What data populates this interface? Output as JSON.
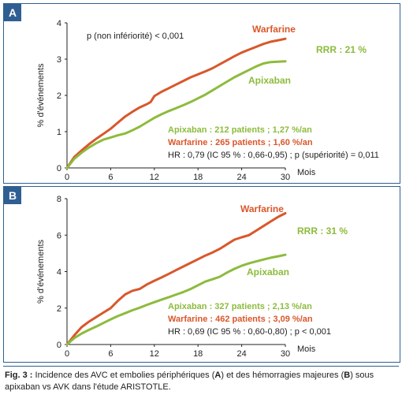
{
  "chart_data": [
    {
      "type": "line",
      "panel_label": "A",
      "ylabel": "% d'événements",
      "xlabel": "Mois",
      "xlim": [
        0,
        30
      ],
      "ylim": [
        0,
        4
      ],
      "xticks": [
        "0",
        "6",
        "12",
        "18",
        "24",
        "30"
      ],
      "yticks": [
        "0",
        "1",
        "2",
        "3",
        "4"
      ],
      "annotation": "p (non infériorité) < 0,001",
      "rrr": "RRR : 21 %",
      "series": [
        {
          "name": "Warfarine",
          "color": "#d9572b",
          "x": [
            0,
            1,
            2,
            3,
            4,
            5,
            6,
            7,
            8,
            9,
            10,
            11,
            11.5,
            12,
            13,
            14,
            15,
            16,
            17,
            18,
            19,
            20,
            21,
            22,
            23,
            24,
            25,
            26,
            27,
            28,
            29,
            30
          ],
          "values": [
            0,
            0.3,
            0.48,
            0.65,
            0.8,
            0.94,
            1.08,
            1.25,
            1.42,
            1.55,
            1.67,
            1.76,
            1.82,
            1.98,
            2.1,
            2.2,
            2.3,
            2.4,
            2.5,
            2.58,
            2.66,
            2.75,
            2.86,
            2.97,
            3.08,
            3.18,
            3.26,
            3.34,
            3.42,
            3.48,
            3.52,
            3.56
          ]
        },
        {
          "name": "Apixaban",
          "color": "#8dbb3d",
          "x": [
            0,
            1,
            2,
            3,
            4,
            5,
            6,
            7,
            8,
            9,
            10,
            11,
            12,
            13,
            14,
            15,
            16,
            17,
            18,
            19,
            20,
            21,
            22,
            23,
            24,
            25,
            26,
            27,
            28,
            29,
            30
          ],
          "values": [
            0,
            0.25,
            0.42,
            0.56,
            0.68,
            0.78,
            0.84,
            0.9,
            0.95,
            1.04,
            1.14,
            1.26,
            1.38,
            1.48,
            1.57,
            1.65,
            1.73,
            1.82,
            1.92,
            2.02,
            2.14,
            2.26,
            2.38,
            2.5,
            2.6,
            2.7,
            2.8,
            2.88,
            2.92,
            2.93,
            2.94
          ]
        }
      ],
      "stats": {
        "apixaban": "Apixaban : 212 patients ; 1,27 %/an",
        "warfarine": "Warfarine : 265 patients ; 1,60 %/an",
        "hr": "HR : 0,79 (IC 95 % : 0,66-0,95) ; p (supériorité) = 0,011"
      }
    },
    {
      "type": "line",
      "panel_label": "B",
      "ylabel": "% d'événements",
      "xlabel": "Mois",
      "xlim": [
        0,
        30
      ],
      "ylim": [
        0,
        8
      ],
      "xticks": [
        "0",
        "6",
        "12",
        "18",
        "24",
        "30"
      ],
      "yticks": [
        "0",
        "2",
        "4",
        "6",
        "8"
      ],
      "rrr": "RRR : 31 %",
      "series": [
        {
          "name": "Warfarine",
          "color": "#d9572b",
          "x": [
            0,
            1,
            2,
            3,
            4,
            5,
            6,
            7,
            8,
            9,
            10,
            11,
            12,
            13,
            14,
            15,
            16,
            17,
            18,
            19,
            20,
            21,
            22,
            23,
            24,
            25,
            26,
            27,
            28,
            29,
            30
          ],
          "values": [
            0,
            0.5,
            0.95,
            1.25,
            1.5,
            1.75,
            2.0,
            2.4,
            2.75,
            2.95,
            3.05,
            3.3,
            3.5,
            3.68,
            3.88,
            4.08,
            4.28,
            4.48,
            4.68,
            4.88,
            5.05,
            5.25,
            5.5,
            5.75,
            5.88,
            6.0,
            6.25,
            6.5,
            6.75,
            7.0,
            7.2
          ]
        },
        {
          "name": "Apixaban",
          "color": "#8dbb3d",
          "x": [
            0,
            1,
            2,
            3,
            4,
            5,
            6,
            7,
            8,
            9,
            10,
            11,
            12,
            13,
            14,
            15,
            16,
            17,
            18,
            19,
            20,
            21,
            22,
            23,
            24,
            25,
            26,
            27,
            28,
            29,
            30
          ],
          "values": [
            0,
            0.35,
            0.6,
            0.8,
            0.98,
            1.18,
            1.38,
            1.56,
            1.72,
            1.88,
            2.02,
            2.18,
            2.32,
            2.46,
            2.6,
            2.74,
            2.88,
            3.05,
            3.25,
            3.45,
            3.58,
            3.72,
            3.95,
            4.15,
            4.32,
            4.45,
            4.56,
            4.66,
            4.76,
            4.84,
            4.92
          ]
        }
      ],
      "stats": {
        "apixaban": "Apixaban : 327 patients ; 2,13 %/an",
        "warfarine": "Warfarine : 462 patients ; 3,09 %/an",
        "hr": "HR : 0,69 (IC 95 % : 0,60-0,80) ; p < 0,001"
      }
    }
  ],
  "caption": {
    "fig_label": "Fig. 3 :",
    "text_1": " Incidence des AVC et embolies périphériques (",
    "a": "A",
    "text_2": ") et des hémorragies majeures (",
    "b": "B",
    "text_3": ") sous apixaban vs AVK dans l'étude ARISTOTLE."
  }
}
